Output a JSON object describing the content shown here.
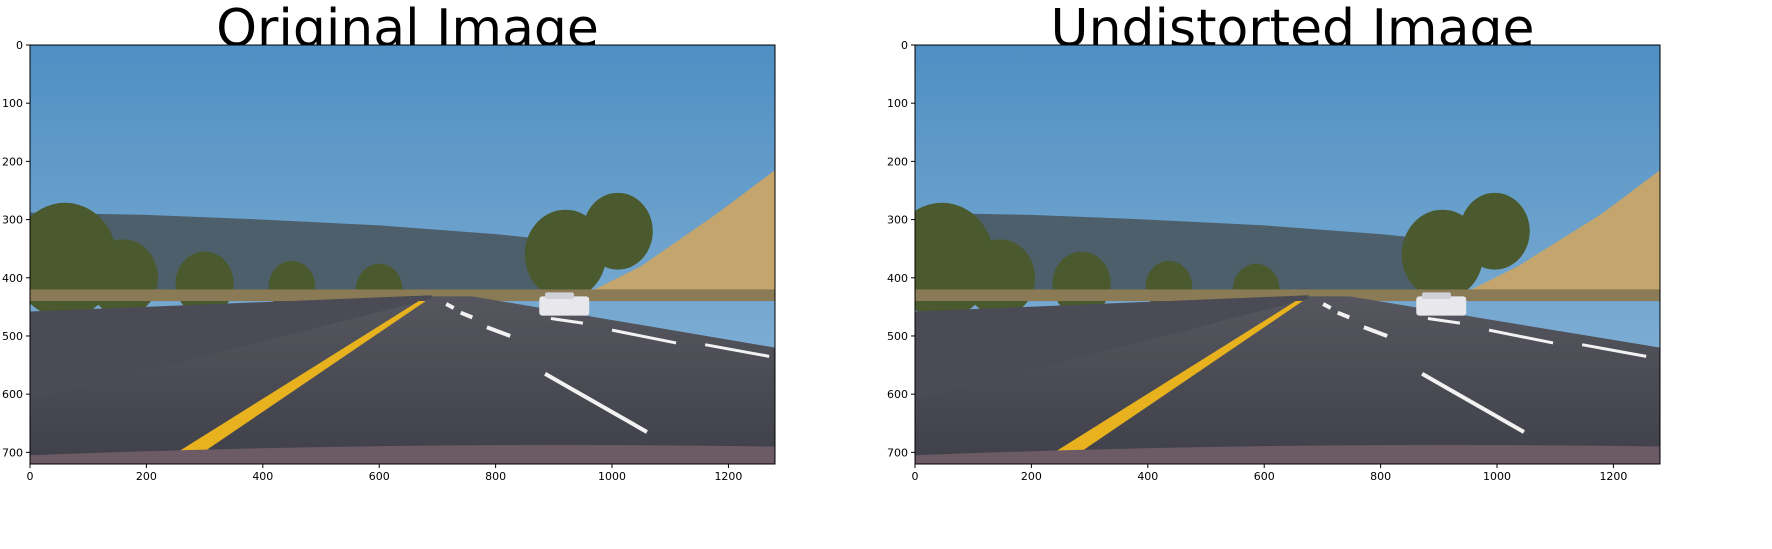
{
  "panels": [
    {
      "title": "Original Image",
      "x_ticks": [
        "0",
        "200",
        "400",
        "600",
        "800",
        "1000",
        "1200"
      ],
      "y_ticks": [
        "0",
        "100",
        "200",
        "300",
        "400",
        "500",
        "600",
        "700"
      ],
      "xlim": [
        0,
        1280
      ],
      "ylim": [
        720,
        0
      ],
      "scene": "road-photo-original"
    },
    {
      "title": "Undistorted Image",
      "x_ticks": [
        "0",
        "200",
        "400",
        "600",
        "800",
        "1000",
        "1200"
      ],
      "y_ticks": [
        "0",
        "100",
        "200",
        "300",
        "400",
        "500",
        "600",
        "700"
      ],
      "xlim": [
        0,
        1280
      ],
      "ylim": [
        720,
        0
      ],
      "scene": "road-photo-undistorted"
    }
  ],
  "colors": {
    "sky_top": "#4f8fc3",
    "sky_bottom": "#8db7d8",
    "hills": "#4d5f6a",
    "grass_hill": "#c4a56d",
    "road": "#3f4049",
    "barrier": "#4a4b55",
    "yellow_line": "#e7b21e",
    "white_line": "#f2f2f2",
    "hood": "#6c5a64"
  }
}
